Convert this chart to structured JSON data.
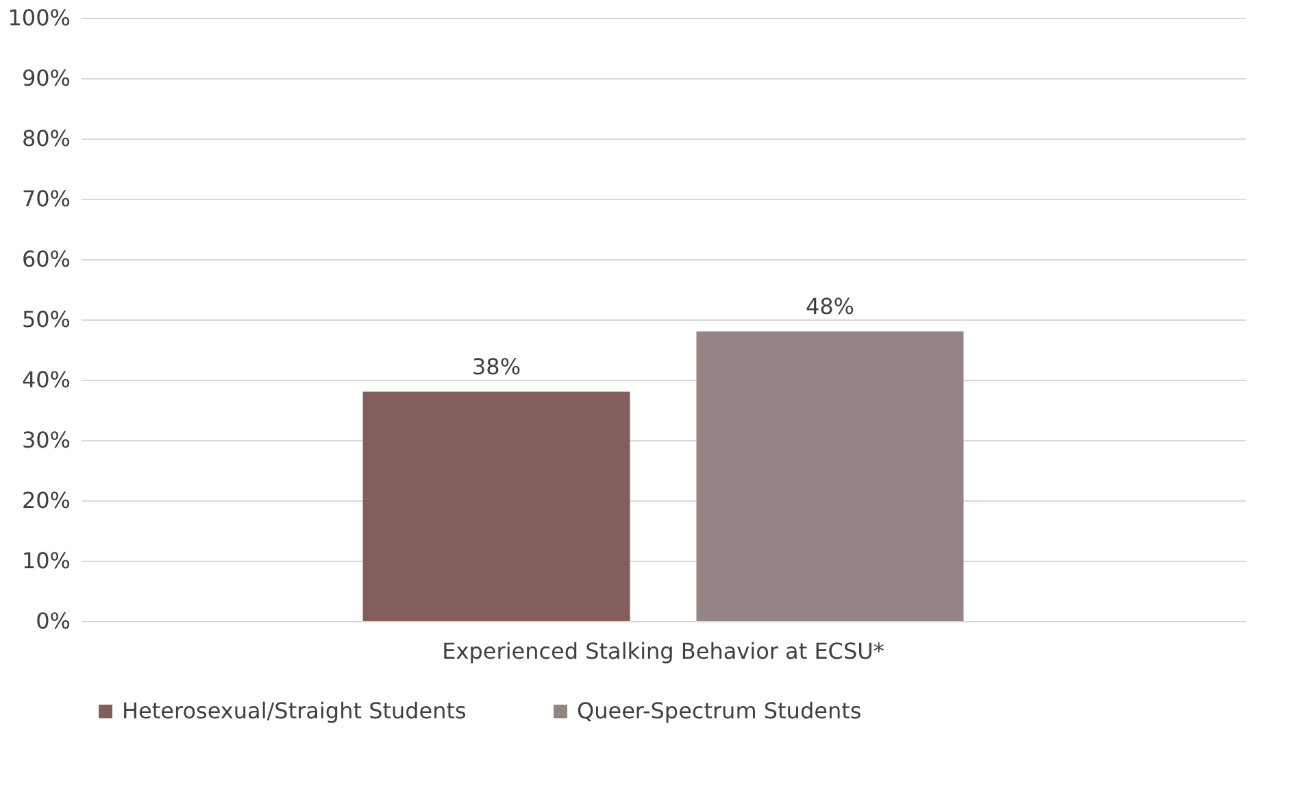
{
  "chart_data": {
    "type": "bar",
    "categories": [
      "Experienced Stalking Behavior at ECSU*"
    ],
    "series": [
      {
        "name": "Heterosexual/Straight Students",
        "color": "#845e5c",
        "values": [
          38
        ],
        "value_labels": [
          "38%"
        ]
      },
      {
        "name": "Queer-Spectrum Students",
        "color": "#948584",
        "values": [
          48
        ],
        "value_labels": [
          "48%"
        ]
      }
    ],
    "ylim": [
      0,
      100
    ],
    "yticks": [
      {
        "value": 0,
        "label": "0%"
      },
      {
        "value": 10,
        "label": "10%"
      },
      {
        "value": 20,
        "label": "20%"
      },
      {
        "value": 30,
        "label": "30%"
      },
      {
        "value": 40,
        "label": "40%"
      },
      {
        "value": 50,
        "label": "50%"
      },
      {
        "value": 60,
        "label": "60%"
      },
      {
        "value": 70,
        "label": "70%"
      },
      {
        "value": 80,
        "label": "80%"
      },
      {
        "value": 90,
        "label": "90%"
      },
      {
        "value": 100,
        "label": "100%"
      }
    ],
    "grid": "y",
    "legend": "bottom"
  }
}
